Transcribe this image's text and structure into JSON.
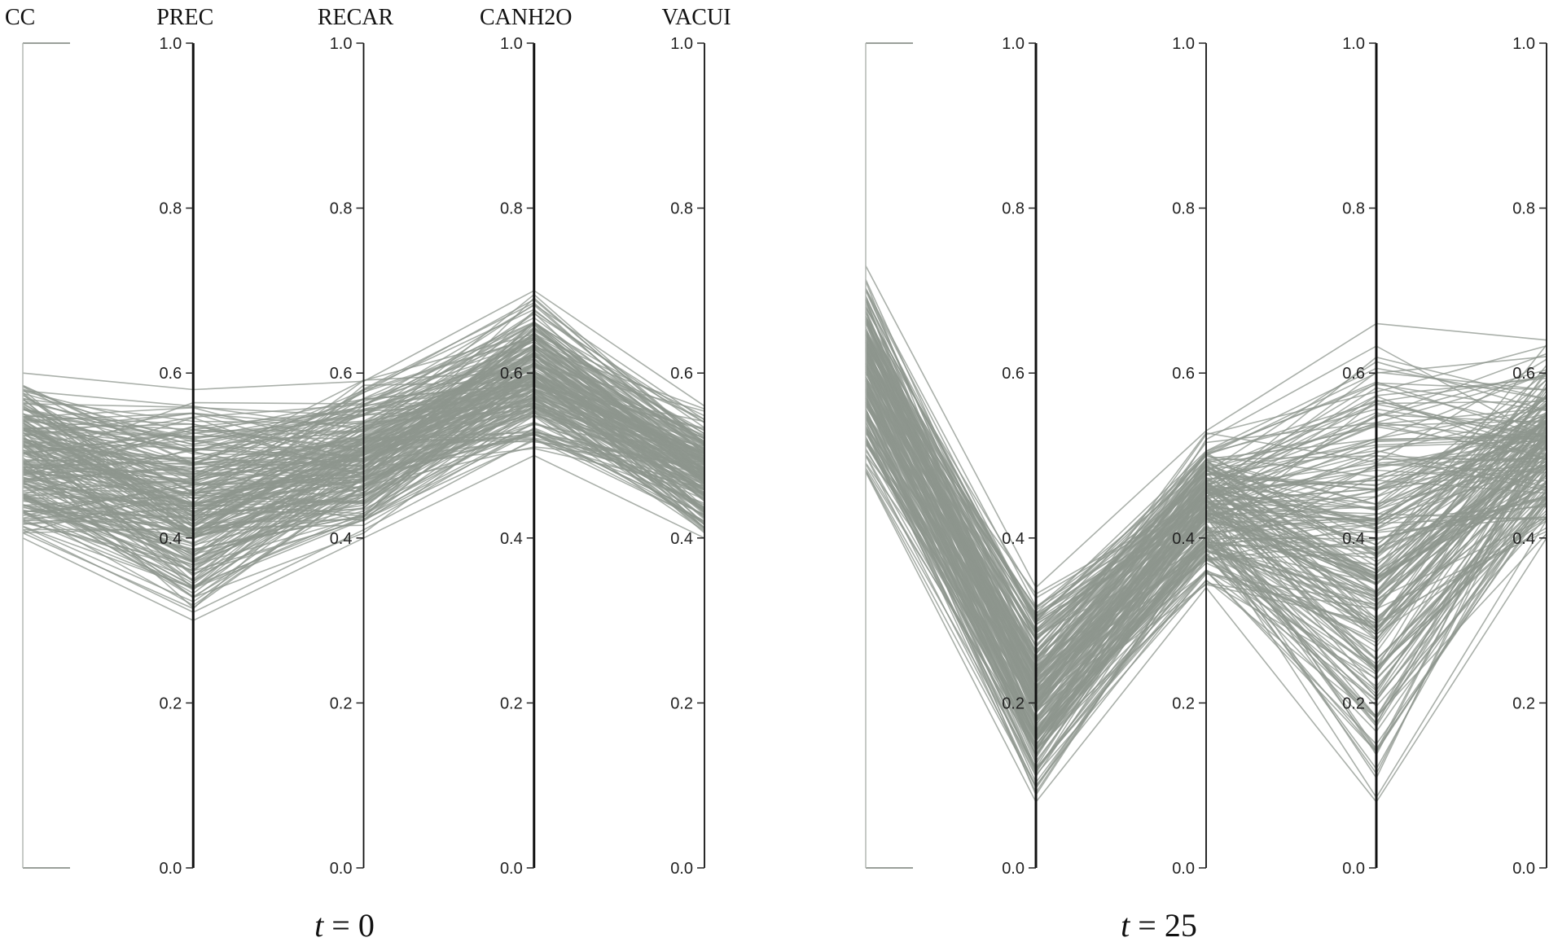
{
  "chart_data": [
    {
      "type": "parallel_coordinates",
      "panel_label": "t = 0",
      "label_var": "t",
      "label_value": "0",
      "axes": [
        "CC",
        "PREC",
        "RECAR",
        "CANH2O",
        "VACUI"
      ],
      "axis_titles_shown": true,
      "ylim": [
        0,
        1
      ],
      "ticks": [
        "0.0",
        "0.2",
        "0.4",
        "0.6",
        "0.8",
        "1.0"
      ],
      "line_count": 220,
      "line_color": "#8e968e",
      "value_ranges": {
        "CC": [
          0.4,
          0.6
        ],
        "PREC": [
          0.3,
          0.58
        ],
        "RECAR": [
          0.4,
          0.6
        ],
        "CANH2O": [
          0.5,
          0.7
        ],
        "VACUI": [
          0.4,
          0.56
        ]
      },
      "samples": [
        [
          0.6,
          0.58,
          0.59,
          0.7,
          0.56
        ],
        [
          0.55,
          0.52,
          0.55,
          0.66,
          0.54
        ],
        [
          0.52,
          0.48,
          0.52,
          0.63,
          0.52
        ],
        [
          0.5,
          0.44,
          0.5,
          0.6,
          0.5
        ],
        [
          0.47,
          0.4,
          0.47,
          0.58,
          0.48
        ],
        [
          0.45,
          0.37,
          0.45,
          0.56,
          0.46
        ],
        [
          0.43,
          0.34,
          0.43,
          0.54,
          0.44
        ],
        [
          0.41,
          0.31,
          0.41,
          0.52,
          0.42
        ],
        [
          0.4,
          0.3,
          0.4,
          0.5,
          0.4
        ]
      ]
    },
    {
      "type": "parallel_coordinates",
      "panel_label": "t = 25",
      "label_var": "t",
      "label_value": "25",
      "axes": [
        "CC",
        "PREC",
        "RECAR",
        "CANH2O",
        "VACUI"
      ],
      "axis_titles_shown": false,
      "ylim": [
        0,
        1
      ],
      "ticks": [
        "0.0",
        "0.2",
        "0.4",
        "0.6",
        "0.8",
        "1.0"
      ],
      "line_count": 220,
      "line_color": "#8e968e",
      "value_ranges": {
        "CC": [
          0.48,
          0.73
        ],
        "PREC": [
          0.08,
          0.34
        ],
        "RECAR": [
          0.34,
          0.53
        ],
        "CANH2O": [
          0.08,
          0.66
        ],
        "VACUI": [
          0.4,
          0.64
        ]
      },
      "samples": [
        [
          0.73,
          0.34,
          0.53,
          0.66,
          0.64
        ],
        [
          0.68,
          0.3,
          0.5,
          0.6,
          0.62
        ],
        [
          0.64,
          0.26,
          0.47,
          0.52,
          0.6
        ],
        [
          0.6,
          0.22,
          0.44,
          0.45,
          0.57
        ],
        [
          0.57,
          0.18,
          0.42,
          0.38,
          0.54
        ],
        [
          0.54,
          0.15,
          0.4,
          0.3,
          0.51
        ],
        [
          0.52,
          0.12,
          0.38,
          0.22,
          0.47
        ],
        [
          0.5,
          0.1,
          0.36,
          0.15,
          0.44
        ],
        [
          0.48,
          0.08,
          0.34,
          0.08,
          0.4
        ]
      ]
    }
  ]
}
